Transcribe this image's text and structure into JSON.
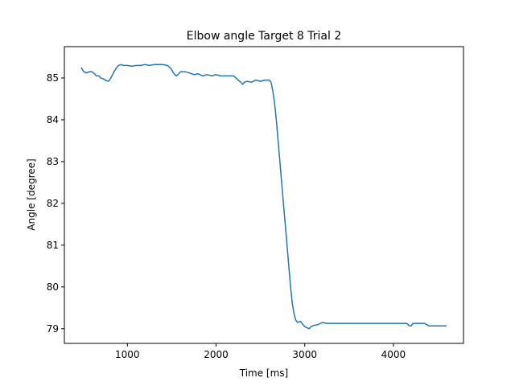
{
  "chart_data": {
    "type": "line",
    "title": "Elbow angle Target 8 Trial 2",
    "xlabel": "Time [ms]",
    "ylabel": "Angle [degree]",
    "xlim": [
      290,
      4790
    ],
    "ylim": [
      78.65,
      85.75
    ],
    "xticks": [
      1000,
      2000,
      3000,
      4000
    ],
    "yticks": [
      79,
      80,
      81,
      82,
      83,
      84,
      85
    ],
    "grid": false,
    "legend": "none",
    "series": [
      {
        "color": "#1f77b4",
        "x": [
          480,
          510,
          540,
          570,
          600,
          630,
          650,
          680,
          700,
          730,
          750,
          780,
          800,
          820,
          850,
          880,
          900,
          930,
          960,
          1000,
          1050,
          1100,
          1150,
          1200,
          1250,
          1300,
          1350,
          1400,
          1450,
          1480,
          1500,
          1520,
          1550,
          1580,
          1600,
          1620,
          1650,
          1700,
          1750,
          1800,
          1850,
          1900,
          1950,
          2000,
          2050,
          2100,
          2150,
          2200,
          2250,
          2280,
          2300,
          2320,
          2350,
          2400,
          2450,
          2500,
          2550,
          2580,
          2600,
          2620,
          2640,
          2660,
          2680,
          2700,
          2720,
          2740,
          2760,
          2780,
          2800,
          2820,
          2840,
          2860,
          2880,
          2900,
          2920,
          2950,
          2980,
          3000,
          3030,
          3050,
          3070,
          3100,
          3150,
          3200,
          3250,
          3300,
          3500,
          3800,
          4000,
          4150,
          4180,
          4200,
          4220,
          4250,
          4350,
          4400,
          4450,
          4500,
          4600
        ],
        "values": [
          85.25,
          85.15,
          85.12,
          85.15,
          85.15,
          85.1,
          85.05,
          85.05,
          85.0,
          84.98,
          84.95,
          84.92,
          84.95,
          85.02,
          85.15,
          85.25,
          85.3,
          85.32,
          85.3,
          85.3,
          85.28,
          85.3,
          85.3,
          85.32,
          85.3,
          85.32,
          85.32,
          85.32,
          85.3,
          85.25,
          85.2,
          85.12,
          85.05,
          85.1,
          85.15,
          85.15,
          85.15,
          85.12,
          85.08,
          85.1,
          85.05,
          85.08,
          85.05,
          85.08,
          85.05,
          85.05,
          85.05,
          85.05,
          84.95,
          84.9,
          84.85,
          84.9,
          84.92,
          84.9,
          84.95,
          84.92,
          84.95,
          84.95,
          84.95,
          84.9,
          84.7,
          84.4,
          84.0,
          83.5,
          83.0,
          82.5,
          82.0,
          81.5,
          81.0,
          80.5,
          80.0,
          79.6,
          79.35,
          79.2,
          79.15,
          79.18,
          79.1,
          79.05,
          79.02,
          79.0,
          79.05,
          79.08,
          79.1,
          79.15,
          79.13,
          79.13,
          79.13,
          79.13,
          79.13,
          79.13,
          79.07,
          79.07,
          79.13,
          79.13,
          79.13,
          79.07,
          79.07,
          79.07,
          79.07
        ]
      }
    ]
  }
}
